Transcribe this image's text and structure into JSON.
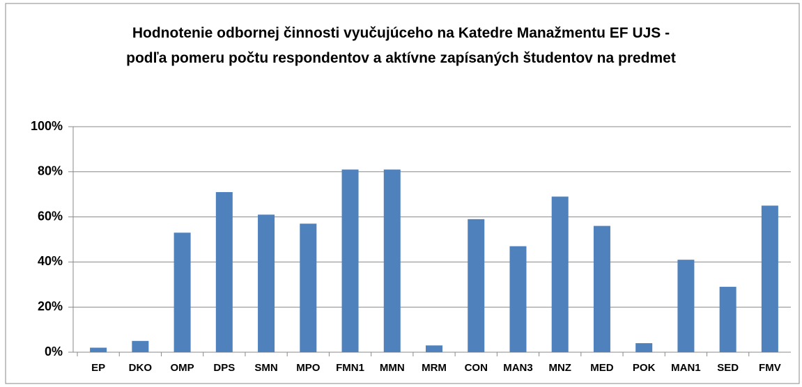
{
  "chart_data": {
    "type": "bar",
    "title": "Hodnotenie odbornej činnosti vyučujúceho na Katedre Manažmentu EF UJS - podľa pomeru počtu respondentov a aktívne zapísaných študentov na predmet",
    "categories": [
      "EP",
      "DKO",
      "OMP",
      "DPS",
      "SMN",
      "MPO",
      "FMN1",
      "MMN",
      "MRM",
      "CON",
      "MAN3",
      "MNZ",
      "MED",
      "POK",
      "MAN1",
      "SED",
      "FMV"
    ],
    "values": [
      2,
      5,
      53,
      71,
      61,
      57,
      81,
      81,
      3,
      59,
      47,
      69,
      56,
      4,
      41,
      29,
      65
    ],
    "color": "#4f81bd",
    "ylim": [
      0,
      100
    ],
    "yticks": [
      {
        "value": 0,
        "label": "0%"
      },
      {
        "value": 20,
        "label": "20%"
      },
      {
        "value": 40,
        "label": "40%"
      },
      {
        "value": 60,
        "label": "60%"
      },
      {
        "value": 80,
        "label": "80%"
      },
      {
        "value": 100,
        "label": "100%"
      }
    ],
    "grid": true
  }
}
